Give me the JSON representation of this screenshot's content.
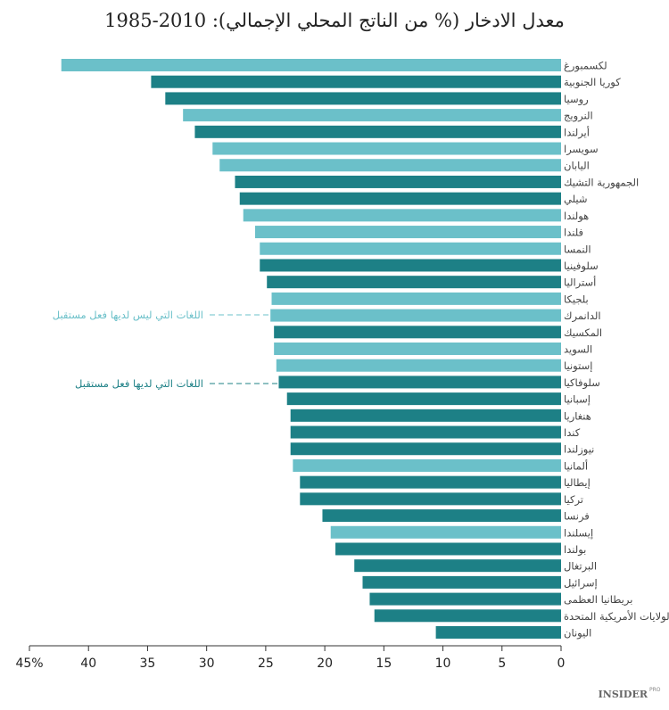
{
  "chart_data": {
    "type": "bar",
    "orientation": "horizontal",
    "title": "معدل الادخار (% من الناتج المحلي الإجمالي): 2010-1985",
    "xlabel": "",
    "ylabel": "",
    "xlim": [
      45,
      0
    ],
    "x_ticks": [
      "45%",
      "40",
      "35",
      "30",
      "25",
      "20",
      "15",
      "10",
      "5",
      "0"
    ],
    "grid": false,
    "colors": {
      "light": "#6bc0c9",
      "dark": "#1d8086"
    },
    "legend": [
      {
        "label": "اللغات التي ليس لديها فعل مستقبل",
        "color": "light"
      },
      {
        "label": "اللغات التي لديها فعل مستقبل",
        "color": "dark"
      }
    ],
    "categories": [
      "لكسمبورغ",
      "كوريا الجنوبية",
      "روسيا",
      "النرويج",
      "أيرلندا",
      "سويسرا",
      "اليابان",
      "الجمهورية التشيك",
      "شيلي",
      "هولندا",
      "فلندا",
      "النمسا",
      "سلوفينيا",
      "أستراليا",
      "بلجيكا",
      "الدانمرك",
      "المكسيك",
      "السويد",
      "إستونيا",
      "سلوفاكيا",
      "إسبانيا",
      "هنغاريا",
      "كندا",
      "نيوزلندا",
      "ألمانيا",
      "إيطاليا",
      "تركيا",
      "فرنسا",
      "إيسلندا",
      "بولندا",
      "البرتغال",
      "إسرائيل",
      "بريطانيا العظمى",
      "الولايات الأمريكية المتحدة",
      "اليونان"
    ],
    "values": [
      42.3,
      34.7,
      33.5,
      32.0,
      31.0,
      29.5,
      28.9,
      27.6,
      27.2,
      26.9,
      25.9,
      25.5,
      25.5,
      24.9,
      24.5,
      24.6,
      24.3,
      24.3,
      24.1,
      23.9,
      23.2,
      22.9,
      22.9,
      22.9,
      22.7,
      22.1,
      22.1,
      20.2,
      19.5,
      19.1,
      17.5,
      16.8,
      16.2,
      15.8,
      10.6
    ],
    "groups": [
      "light",
      "dark",
      "dark",
      "light",
      "dark",
      "light",
      "light",
      "dark",
      "dark",
      "light",
      "light",
      "light",
      "dark",
      "dark",
      "light",
      "light",
      "dark",
      "light",
      "light",
      "dark",
      "dark",
      "dark",
      "dark",
      "dark",
      "light",
      "dark",
      "dark",
      "dark",
      "light",
      "dark",
      "dark",
      "dark",
      "dark",
      "dark",
      "dark"
    ]
  },
  "logo": {
    "text": "INSIDER",
    "sup": "PRO"
  }
}
